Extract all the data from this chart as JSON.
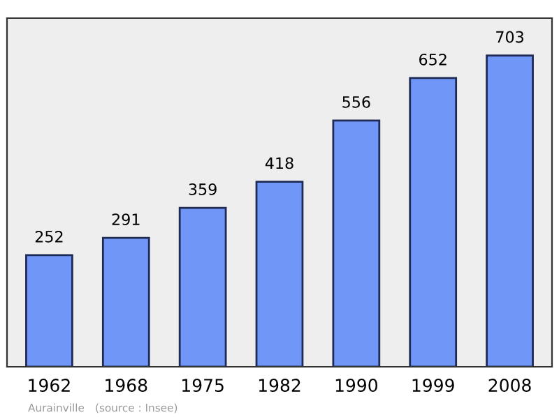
{
  "chart_data": {
    "type": "bar",
    "categories": [
      "1962",
      "1968",
      "1975",
      "1982",
      "1990",
      "1999",
      "2008"
    ],
    "values": [
      252,
      291,
      359,
      418,
      556,
      652,
      703
    ],
    "color": "#7097f7",
    "data_labels": true,
    "annotations": [
      "Aurainville",
      "(source : Insee)"
    ]
  }
}
